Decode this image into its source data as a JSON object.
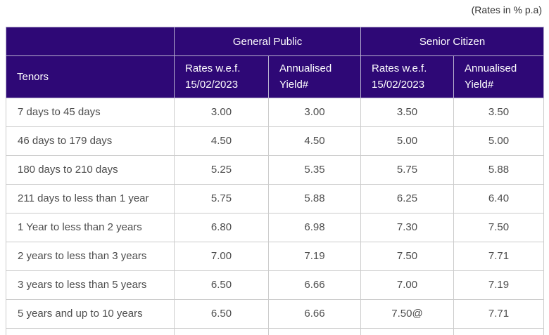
{
  "page": {
    "note": "(Rates in % p.a)"
  },
  "colors": {
    "header_bg": "#2e0876",
    "header_text": "#ffffff",
    "border": "#cccccc",
    "header_divider": "#b9b2d0",
    "body_text": "#4d4d4d"
  },
  "table": {
    "groups": [
      {
        "label": "General Public"
      },
      {
        "label": "Senior Citizen"
      }
    ],
    "tenors_header": "Tenors",
    "rate_header": "Rates w.e.f. 15/02/2023",
    "yield_header": "Annualised Yield#",
    "rows": [
      {
        "tenor": "7 days to 45 days",
        "values": [
          "3.00",
          "3.00",
          "3.50",
          "3.50"
        ]
      },
      {
        "tenor": "46 days to 179 days",
        "values": [
          "4.50",
          "4.50",
          "5.00",
          "5.00"
        ]
      },
      {
        "tenor": "180 days to 210 days",
        "values": [
          "5.25",
          "5.35",
          "5.75",
          "5.88"
        ]
      },
      {
        "tenor": "211 days to less than 1 year",
        "values": [
          "5.75",
          "5.88",
          "6.25",
          "6.40"
        ]
      },
      {
        "tenor": "1 Year to less than 2 years",
        "values": [
          "6.80",
          "6.98",
          "7.30",
          "7.50"
        ]
      },
      {
        "tenor": "2 years to less than 3 years",
        "values": [
          "7.00",
          "7.19",
          "7.50",
          "7.71"
        ]
      },
      {
        "tenor": "3 years to less than 5 years",
        "values": [
          "6.50",
          "6.66",
          "7.00",
          "7.19"
        ]
      },
      {
        "tenor": "5 years and up to 10 years",
        "values": [
          "6.50",
          "6.66",
          "7.50@",
          "7.71"
        ]
      }
    ]
  }
}
